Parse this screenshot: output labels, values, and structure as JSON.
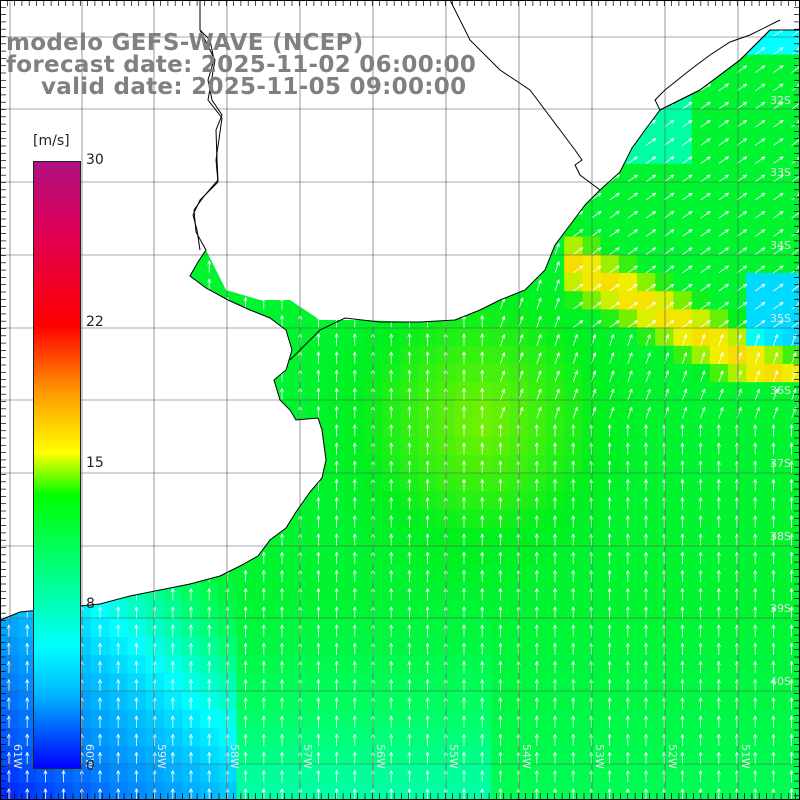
{
  "title": {
    "model": "modelo GEFS-WAVE (NCEP)",
    "forecast": "forecast date: 2025-11-02 06:00:00",
    "valid": "valid date: 2025-11-05 09:00:00"
  },
  "colorbar": {
    "unit": "[m/s]",
    "ticks": [
      {
        "value": 30,
        "label": "30"
      },
      {
        "value": 22,
        "label": "22"
      },
      {
        "value": 15,
        "label": "15"
      },
      {
        "value": 8,
        "label": "8"
      },
      {
        "value": 0,
        "label": "0"
      }
    ]
  },
  "grid": {
    "lat_labels": [
      "32S",
      "33S",
      "34S",
      "35S",
      "36S",
      "37S",
      "38S",
      "39S",
      "40S"
    ],
    "lon_labels": [
      "61W",
      "60W",
      "59W",
      "58W",
      "57W",
      "56W",
      "55W",
      "54W",
      "53W",
      "52W",
      "51W"
    ]
  },
  "colors": {
    "land": "#ffffff",
    "coast": "#000000",
    "grid": "#555555",
    "arrows": "#ffffff",
    "calm_blue": "#0050ff",
    "light_blue": "#00d0ff",
    "green": "#00f040",
    "yellow": "#f0e000"
  },
  "field": {
    "variable": "wind speed",
    "direction": "northward (south wind)"
  }
}
